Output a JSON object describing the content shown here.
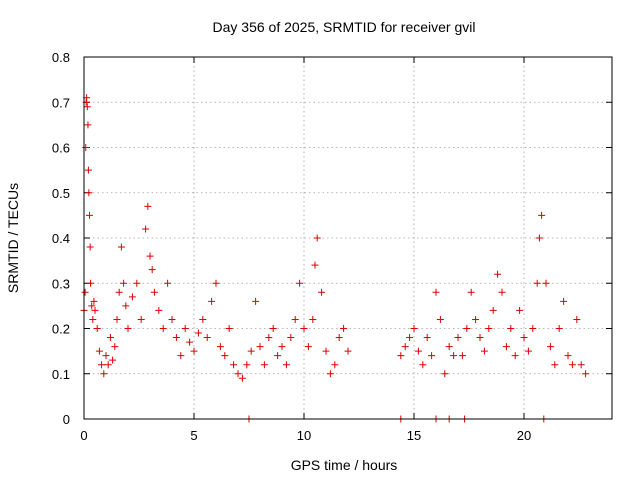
{
  "chart_data": {
    "type": "scatter",
    "title": "Day 356 of 2025, SRMTID for receiver gvil",
    "xlabel": "GPS time / hours",
    "ylabel": "SRMTID / TECUs",
    "xlim": [
      0,
      24
    ],
    "ylim": [
      0,
      0.8
    ],
    "xticks": [
      0,
      5,
      10,
      15,
      20
    ],
    "xtick_labels": [
      "0",
      "5",
      "10",
      "15",
      "20"
    ],
    "yticks": [
      0,
      0.1,
      0.2,
      0.3,
      0.4,
      0.5,
      0.6,
      0.7,
      0.8
    ],
    "ytick_labels": [
      "0",
      "0.1",
      "0.2",
      "0.3",
      "0.4",
      "0.5",
      "0.6",
      "0.7",
      "0.8"
    ],
    "grid": true,
    "marker": "+",
    "color": "#e00000",
    "series": [
      {
        "name": "SRMTID",
        "points": [
          [
            0.0,
            0.24
          ],
          [
            0.05,
            0.28
          ],
          [
            0.08,
            0.6
          ],
          [
            0.1,
            0.7
          ],
          [
            0.12,
            0.71
          ],
          [
            0.15,
            0.69
          ],
          [
            0.18,
            0.65
          ],
          [
            0.2,
            0.55
          ],
          [
            0.22,
            0.5
          ],
          [
            0.25,
            0.45
          ],
          [
            0.28,
            0.38
          ],
          [
            0.3,
            0.3
          ],
          [
            0.35,
            0.25
          ],
          [
            0.4,
            0.22
          ],
          [
            0.45,
            0.26
          ],
          [
            0.5,
            0.24
          ],
          [
            0.6,
            0.2
          ],
          [
            0.7,
            0.15
          ],
          [
            0.8,
            0.12
          ],
          [
            0.9,
            0.1
          ],
          [
            1.0,
            0.14
          ],
          [
            1.1,
            0.12
          ],
          [
            1.2,
            0.18
          ],
          [
            1.3,
            0.13
          ],
          [
            1.4,
            0.16
          ],
          [
            1.5,
            0.22
          ],
          [
            1.6,
            0.28
          ],
          [
            1.7,
            0.38
          ],
          [
            1.8,
            0.3
          ],
          [
            1.9,
            0.25
          ],
          [
            2.0,
            0.2
          ],
          [
            2.2,
            0.27
          ],
          [
            2.4,
            0.3
          ],
          [
            2.6,
            0.22
          ],
          [
            2.8,
            0.42
          ],
          [
            2.9,
            0.47
          ],
          [
            3.0,
            0.36
          ],
          [
            3.1,
            0.33
          ],
          [
            3.2,
            0.28
          ],
          [
            3.4,
            0.24
          ],
          [
            3.6,
            0.2
          ],
          [
            3.8,
            0.3
          ],
          [
            4.0,
            0.22
          ],
          [
            4.2,
            0.18
          ],
          [
            4.4,
            0.14
          ],
          [
            4.6,
            0.2
          ],
          [
            4.8,
            0.17
          ],
          [
            5.0,
            0.15
          ],
          [
            5.2,
            0.19
          ],
          [
            5.4,
            0.22
          ],
          [
            5.6,
            0.18
          ],
          [
            5.8,
            0.26
          ],
          [
            6.0,
            0.3
          ],
          [
            6.2,
            0.16
          ],
          [
            6.4,
            0.14
          ],
          [
            6.6,
            0.2
          ],
          [
            6.8,
            0.12
          ],
          [
            7.0,
            0.1
          ],
          [
            7.2,
            0.09
          ],
          [
            7.4,
            0.12
          ],
          [
            7.6,
            0.15
          ],
          [
            7.8,
            0.26
          ],
          [
            8.0,
            0.16
          ],
          [
            8.2,
            0.12
          ],
          [
            8.4,
            0.18
          ],
          [
            8.6,
            0.2
          ],
          [
            8.8,
            0.14
          ],
          [
            9.0,
            0.16
          ],
          [
            9.2,
            0.12
          ],
          [
            9.4,
            0.18
          ],
          [
            9.6,
            0.22
          ],
          [
            9.8,
            0.3
          ],
          [
            10.0,
            0.2
          ],
          [
            10.2,
            0.16
          ],
          [
            10.4,
            0.22
          ],
          [
            10.5,
            0.34
          ],
          [
            10.6,
            0.4
          ],
          [
            10.8,
            0.28
          ],
          [
            11.0,
            0.15
          ],
          [
            11.2,
            0.1
          ],
          [
            11.4,
            0.12
          ],
          [
            11.6,
            0.18
          ],
          [
            11.8,
            0.2
          ],
          [
            12.0,
            0.15
          ],
          [
            14.4,
            0.14
          ],
          [
            14.6,
            0.16
          ],
          [
            14.8,
            0.18
          ],
          [
            15.0,
            0.2
          ],
          [
            15.2,
            0.15
          ],
          [
            15.4,
            0.12
          ],
          [
            15.6,
            0.18
          ],
          [
            15.8,
            0.14
          ],
          [
            16.0,
            0.28
          ],
          [
            16.2,
            0.22
          ],
          [
            16.4,
            0.1
          ],
          [
            16.6,
            0.16
          ],
          [
            16.8,
            0.14
          ],
          [
            17.0,
            0.18
          ],
          [
            17.2,
            0.14
          ],
          [
            17.4,
            0.2
          ],
          [
            17.6,
            0.28
          ],
          [
            17.8,
            0.22
          ],
          [
            18.0,
            0.18
          ],
          [
            18.2,
            0.15
          ],
          [
            18.4,
            0.2
          ],
          [
            18.6,
            0.24
          ],
          [
            18.8,
            0.32
          ],
          [
            19.0,
            0.28
          ],
          [
            19.2,
            0.16
          ],
          [
            19.4,
            0.2
          ],
          [
            19.6,
            0.14
          ],
          [
            19.8,
            0.24
          ],
          [
            20.0,
            0.18
          ],
          [
            20.2,
            0.15
          ],
          [
            20.4,
            0.2
          ],
          [
            20.6,
            0.3
          ],
          [
            20.7,
            0.4
          ],
          [
            20.8,
            0.45
          ],
          [
            21.0,
            0.3
          ],
          [
            21.2,
            0.16
          ],
          [
            21.4,
            0.12
          ],
          [
            21.6,
            0.2
          ],
          [
            21.8,
            0.26
          ],
          [
            22.0,
            0.14
          ],
          [
            22.2,
            0.12
          ],
          [
            22.4,
            0.22
          ],
          [
            22.6,
            0.12
          ],
          [
            22.8,
            0.1
          ],
          [
            7.5,
            0.0
          ],
          [
            14.4,
            0.0
          ],
          [
            16.0,
            0.0
          ],
          [
            16.6,
            0.0
          ],
          [
            17.3,
            0.0
          ],
          [
            20.9,
            0.0
          ]
        ]
      }
    ]
  }
}
